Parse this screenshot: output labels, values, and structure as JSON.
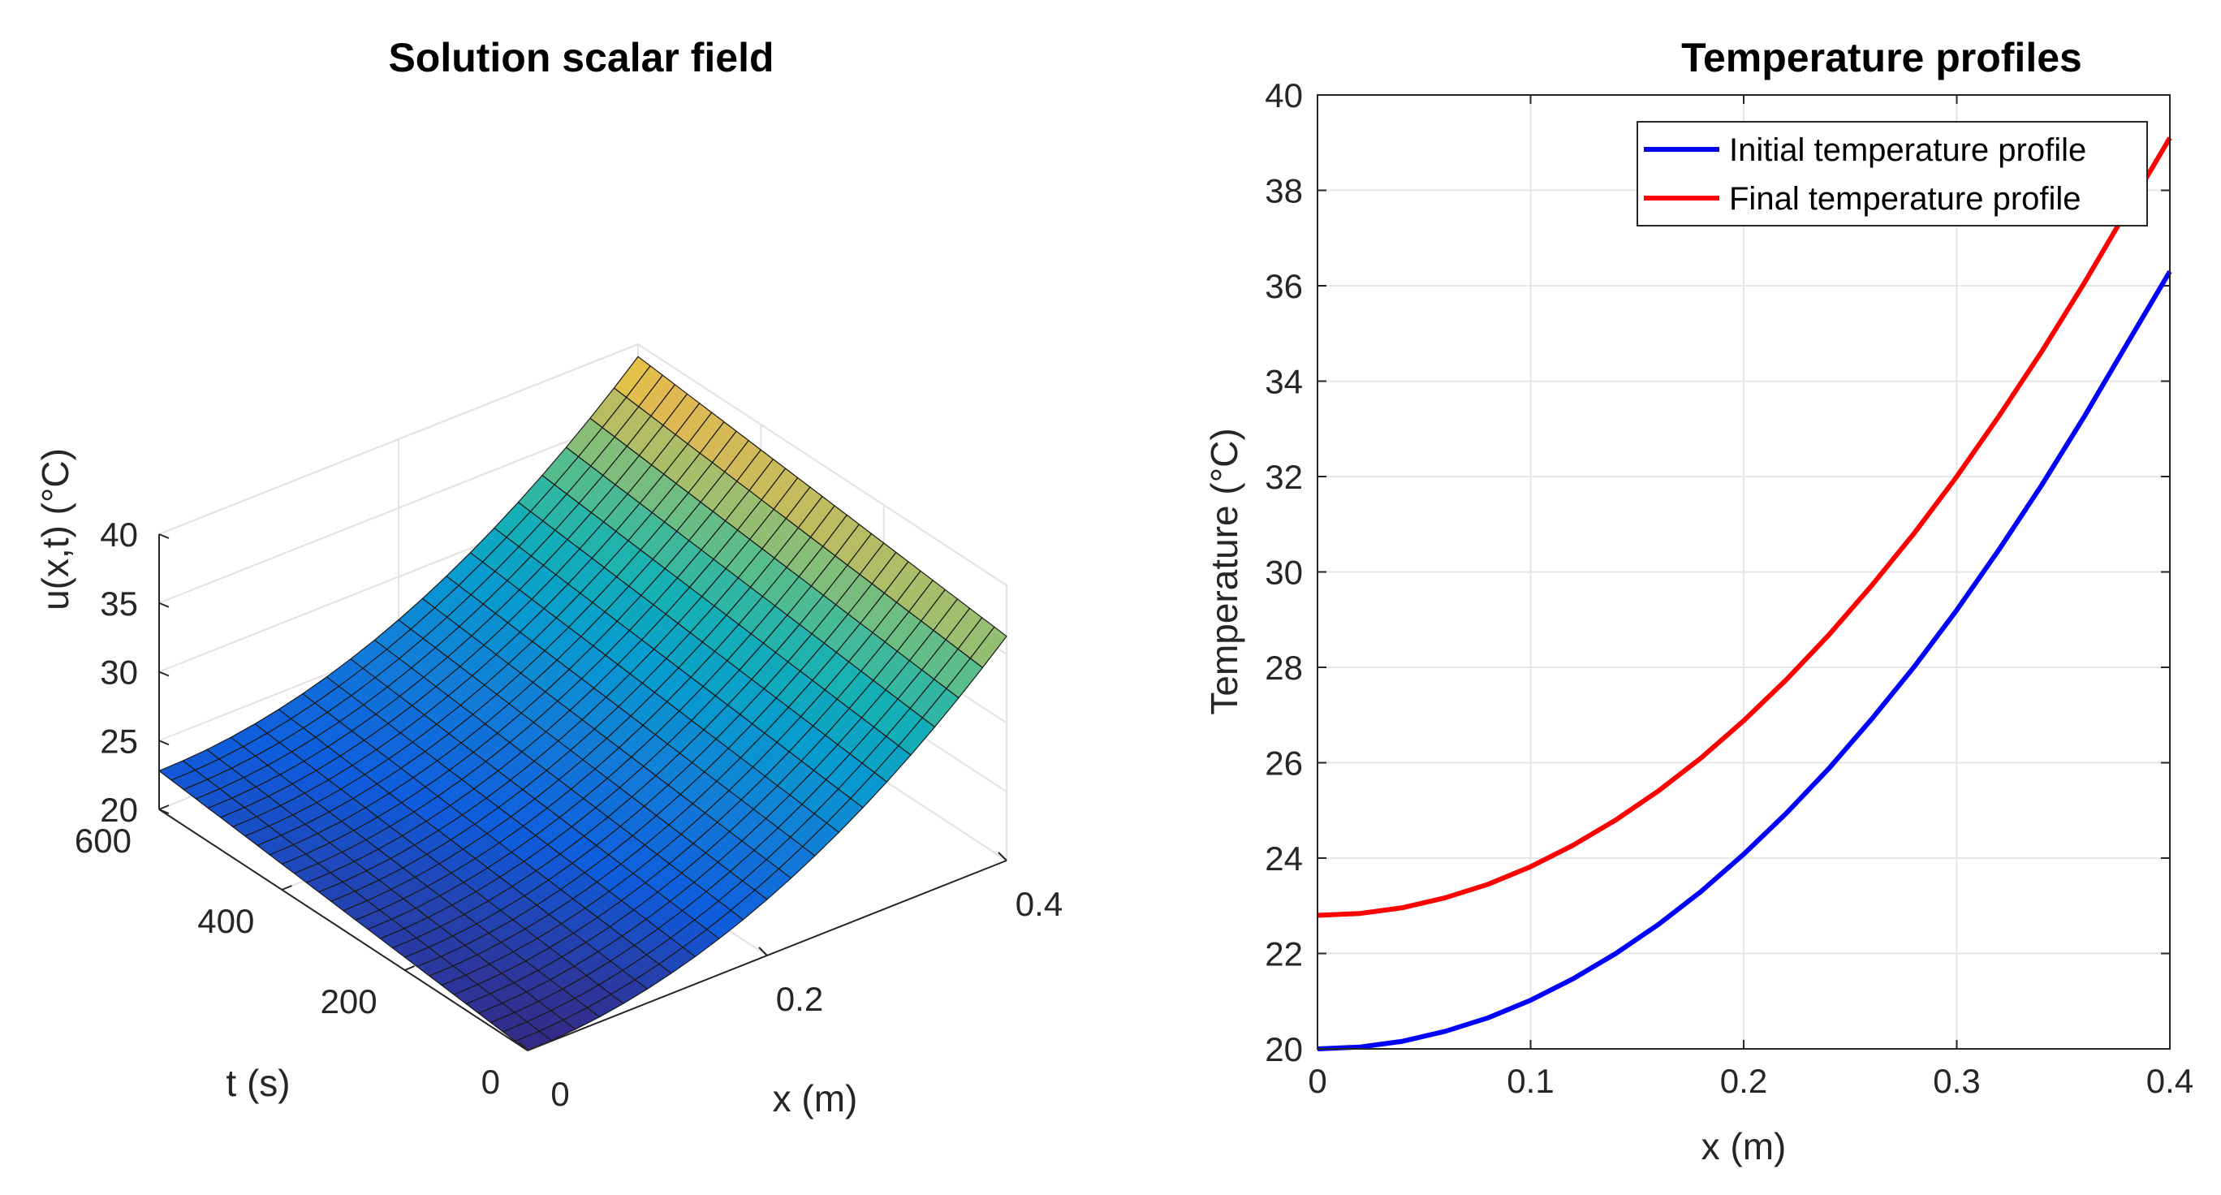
{
  "chart_data": [
    {
      "type": "surface",
      "title": "Solution scalar field",
      "xlabel": "x (m)",
      "ylabel": "t (s)",
      "zlabel": "u(x,t) (°C)",
      "xlim": [
        0,
        0.4
      ],
      "ylim": [
        0,
        600
      ],
      "zlim": [
        20,
        40
      ],
      "x_ticks": [
        0,
        0.2,
        0.4
      ],
      "x_tick_labels": [
        "0",
        "0.2",
        "0.4"
      ],
      "y_ticks": [
        0,
        200,
        400,
        600
      ],
      "y_tick_labels": [
        "0",
        "200",
        "400",
        "600"
      ],
      "z_ticks": [
        20,
        25,
        30,
        35,
        40
      ],
      "z_tick_labels": [
        "20",
        "25",
        "30",
        "35",
        "40"
      ],
      "grid": true,
      "colormap": "parula",
      "mesh": {
        "x_points": 21,
        "t_points": 31
      },
      "surface_model": {
        "description": "u(x,t) rises quadratically with x; offset grows with t",
        "u_x0_t0": 20.0,
        "u_x0_tend": 22.8,
        "u_xend_t0": 36.3,
        "u_xend_tend": 39.1
      }
    },
    {
      "type": "line",
      "title": "Temperature profiles",
      "xlabel": "x (m)",
      "ylabel": "Temperature (°C)",
      "xlim": [
        0,
        0.4
      ],
      "ylim": [
        20,
        40
      ],
      "x_ticks": [
        0,
        0.1,
        0.2,
        0.3,
        0.4
      ],
      "x_tick_labels": [
        "0",
        "0.1",
        "0.2",
        "0.3",
        "0.4"
      ],
      "y_ticks": [
        20,
        22,
        24,
        26,
        28,
        30,
        32,
        34,
        36,
        38,
        40
      ],
      "y_tick_labels": [
        "20",
        "22",
        "24",
        "26",
        "28",
        "30",
        "32",
        "34",
        "36",
        "38",
        "40"
      ],
      "grid": true,
      "legend_position": "top-right",
      "x": [
        0,
        0.02,
        0.04,
        0.06,
        0.08,
        0.1,
        0.12,
        0.14,
        0.16,
        0.18,
        0.2,
        0.22,
        0.24,
        0.26,
        0.28,
        0.3,
        0.32,
        0.34,
        0.36,
        0.38,
        0.4
      ],
      "series": [
        {
          "name": "Initial temperature profile",
          "color": "#0000ff",
          "values": [
            20.0,
            20.04,
            20.16,
            20.37,
            20.65,
            21.02,
            21.47,
            22.0,
            22.61,
            23.3,
            24.08,
            24.94,
            25.88,
            26.91,
            28.01,
            29.2,
            30.48,
            31.83,
            33.27,
            34.79,
            36.3
          ]
        },
        {
          "name": "Final temperature profile",
          "color": "#ff0000",
          "values": [
            22.8,
            22.84,
            22.96,
            23.17,
            23.45,
            23.82,
            24.27,
            24.8,
            25.41,
            26.1,
            26.88,
            27.74,
            28.68,
            29.71,
            30.81,
            32.0,
            33.28,
            34.63,
            36.07,
            37.59,
            39.1
          ]
        }
      ]
    }
  ]
}
